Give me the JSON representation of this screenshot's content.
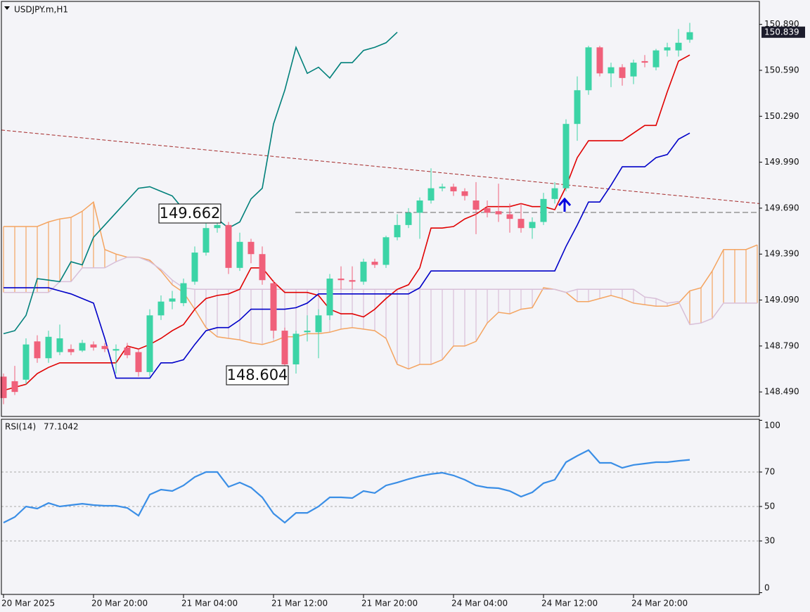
{
  "chart_data": [
    {
      "type": "candlestick",
      "title": "USDJPY.m,H1",
      "categories": [
        "20 Mar 2025",
        null,
        null,
        null,
        null,
        null,
        null,
        null,
        "20 Mar 20:00",
        null,
        null,
        null,
        null,
        null,
        null,
        null,
        "21 Mar 04:00",
        null,
        null,
        null,
        null,
        null,
        null,
        null,
        "21 Mar 12:00",
        null,
        null,
        null,
        null,
        null,
        null,
        null,
        "21 Mar 20:00",
        null,
        null,
        null,
        null,
        null,
        null,
        null,
        "24 Mar 04:00",
        null,
        null,
        null,
        null,
        null,
        null,
        null,
        "24 Mar 12:00",
        null,
        null,
        null,
        null,
        null,
        null,
        null,
        "24 Mar 20:00",
        null,
        null,
        null,
        null,
        null,
        null,
        null,
        null,
        null,
        null,
        null
      ],
      "open": [
        148.59,
        148.56,
        148.57,
        148.82,
        148.71,
        148.75,
        148.77,
        148.76,
        148.8,
        148.79,
        148.76,
        148.78,
        148.75,
        148.62,
        148.99,
        149.08,
        149.07,
        149.21,
        149.4,
        149.56,
        149.58,
        149.3,
        149.47,
        149.39,
        149.2,
        148.89,
        148.67,
        148.88,
        148.88,
        148.99,
        149.23,
        149.22,
        149.21,
        149.34,
        149.32,
        149.5,
        149.58,
        149.66,
        149.74,
        149.82,
        149.83,
        149.8,
        149.74,
        149.69,
        149.67,
        149.65,
        149.62,
        149.56,
        149.6,
        149.75,
        149.82,
        150.24,
        150.46,
        150.74,
        150.57,
        150.61,
        150.55,
        150.65,
        150.61,
        150.72,
        150.72,
        150.79,
        null,
        null,
        null,
        null,
        null,
        null
      ],
      "high": [
        148.61,
        148.66,
        148.84,
        148.86,
        148.89,
        148.93,
        148.8,
        148.83,
        148.82,
        148.81,
        148.8,
        148.81,
        148.77,
        149.03,
        149.12,
        149.15,
        149.23,
        149.44,
        149.59,
        149.662,
        149.6,
        149.53,
        149.49,
        149.44,
        149.22,
        148.91,
        148.89,
        148.99,
        149.03,
        149.26,
        149.31,
        149.31,
        149.36,
        149.36,
        149.51,
        149.65,
        149.69,
        149.76,
        149.95,
        149.85,
        149.85,
        149.82,
        149.86,
        149.74,
        149.85,
        149.72,
        149.72,
        149.63,
        149.79,
        149.86,
        150.27,
        150.55,
        150.75,
        150.75,
        150.64,
        150.63,
        150.66,
        150.69,
        150.73,
        150.77,
        150.86,
        150.9,
        null,
        null,
        null,
        null,
        null,
        null
      ],
      "low": [
        148.41,
        148.47,
        148.54,
        148.68,
        148.68,
        148.73,
        148.73,
        148.75,
        148.76,
        148.75,
        148.61,
        148.71,
        148.59,
        148.59,
        148.96,
        149.03,
        149.05,
        149.19,
        149.38,
        149.53,
        149.26,
        149.28,
        149.33,
        149.19,
        148.84,
        148.604,
        148.61,
        148.82,
        148.71,
        148.96,
        149.16,
        149.16,
        149.19,
        149.3,
        149.3,
        149.48,
        149.56,
        149.49,
        149.72,
        149.8,
        149.77,
        149.74,
        149.52,
        149.63,
        149.6,
        149.53,
        149.53,
        149.49,
        149.58,
        149.72,
        149.8,
        150.13,
        150.43,
        150.55,
        150.48,
        150.49,
        150.5,
        150.61,
        150.59,
        150.68,
        150.68,
        150.77,
        null,
        null,
        null,
        null,
        null,
        null
      ],
      "close": [
        148.45,
        148.49,
        148.8,
        148.71,
        148.85,
        148.84,
        148.75,
        148.81,
        148.78,
        148.77,
        148.77,
        148.73,
        148.62,
        148.99,
        149.08,
        149.1,
        149.2,
        149.4,
        149.56,
        149.58,
        149.3,
        149.47,
        149.39,
        149.22,
        148.89,
        148.67,
        148.87,
        148.89,
        148.99,
        149.23,
        149.22,
        149.21,
        149.34,
        149.32,
        149.5,
        149.58,
        149.66,
        149.74,
        149.82,
        149.83,
        149.8,
        149.77,
        149.68,
        149.66,
        149.65,
        149.62,
        149.56,
        149.6,
        149.75,
        149.82,
        150.24,
        150.46,
        150.74,
        150.57,
        150.61,
        150.54,
        150.64,
        150.64,
        150.72,
        150.74,
        150.77,
        150.839,
        null,
        null,
        null,
        null,
        null,
        null
      ],
      "up_color": "#3cd4a6",
      "down_color": "#f0607a",
      "lines": [
        {
          "color": "#e00000",
          "values": [
            148.5,
            148.52,
            148.54,
            148.61,
            148.65,
            148.68,
            148.68,
            148.68,
            148.68,
            148.68,
            148.68,
            148.79,
            148.77,
            148.8,
            148.84,
            148.89,
            148.93,
            149.03,
            149.1,
            149.12,
            149.13,
            149.16,
            149.3,
            149.3,
            149.21,
            149.14,
            149.14,
            149.14,
            149.12,
            149.03,
            149.0,
            149.0,
            148.98,
            149.03,
            149.1,
            149.16,
            149.19,
            149.3,
            149.56,
            149.56,
            149.57,
            149.62,
            149.65,
            149.7,
            149.7,
            149.7,
            149.72,
            149.7,
            149.7,
            149.68,
            149.83,
            150.02,
            150.13,
            150.13,
            150.13,
            150.13,
            150.18,
            150.23,
            150.23,
            150.45,
            150.65,
            150.69,
            null,
            null,
            null,
            null,
            null,
            null
          ]
        },
        {
          "color": "#0000c8",
          "values": [
            149.17,
            149.17,
            149.17,
            149.17,
            149.17,
            149.15,
            149.13,
            149.1,
            149.07,
            148.84,
            148.58,
            148.58,
            148.58,
            148.58,
            148.68,
            148.68,
            148.7,
            148.8,
            148.89,
            148.91,
            148.91,
            148.96,
            149.03,
            149.03,
            149.03,
            149.03,
            149.04,
            149.07,
            149.13,
            149.13,
            149.13,
            149.13,
            149.13,
            149.13,
            149.13,
            149.13,
            149.13,
            149.17,
            149.28,
            149.28,
            149.28,
            149.28,
            149.28,
            149.28,
            149.28,
            149.28,
            149.28,
            149.28,
            149.28,
            149.28,
            149.44,
            149.58,
            149.73,
            149.73,
            149.84,
            149.96,
            149.96,
            149.96,
            150.02,
            150.04,
            150.14,
            150.18,
            null,
            null,
            null,
            null,
            null,
            null
          ]
        },
        {
          "color": "#00807a",
          "values": [
            148.87,
            148.89,
            148.99,
            149.23,
            149.22,
            149.21,
            149.34,
            149.32,
            149.5,
            149.58,
            149.66,
            149.74,
            149.82,
            149.83,
            149.8,
            149.77,
            149.68,
            149.66,
            149.65,
            149.62,
            149.56,
            149.6,
            149.75,
            149.82,
            150.24,
            150.46,
            150.74,
            150.57,
            150.61,
            150.54,
            150.64,
            150.64,
            150.72,
            150.74,
            150.77,
            150.839,
            null,
            null,
            null,
            null,
            null,
            null,
            null,
            null,
            null,
            null,
            null,
            null,
            null,
            null,
            null,
            null,
            null,
            null,
            null,
            null,
            null,
            null,
            null,
            null,
            null,
            null,
            null,
            null,
            null,
            null,
            null,
            null
          ]
        }
      ],
      "cloud": {
        "up_color": "#f4a460",
        "down_color": "#d8bfd8",
        "a": [
          149.57,
          149.57,
          149.57,
          149.57,
          149.6,
          149.62,
          149.63,
          149.67,
          149.73,
          149.42,
          149.39,
          149.37,
          149.37,
          149.35,
          149.28,
          149.19,
          149.14,
          149.03,
          148.91,
          148.85,
          148.84,
          148.83,
          148.81,
          148.8,
          148.82,
          148.85,
          148.85,
          148.87,
          148.87,
          148.88,
          148.9,
          148.91,
          148.9,
          148.89,
          148.84,
          148.67,
          148.64,
          148.67,
          148.67,
          148.7,
          148.79,
          148.79,
          148.82,
          148.94,
          149.01,
          149.0,
          149.03,
          149.04,
          149.17,
          149.16,
          149.14,
          149.08,
          149.08,
          149.1,
          149.12,
          149.1,
          149.07,
          149.06,
          149.05,
          149.05,
          149.07,
          149.15,
          149.17,
          149.28,
          149.42,
          149.42,
          149.42,
          149.45
        ],
        "b": [
          149.14,
          149.14,
          149.14,
          149.14,
          149.14,
          149.21,
          149.21,
          149.3,
          149.3,
          149.3,
          149.34,
          149.37,
          149.37,
          149.34,
          149.29,
          149.22,
          149.17,
          149.16,
          149.16,
          149.16,
          149.16,
          149.16,
          149.16,
          149.16,
          149.16,
          149.16,
          149.16,
          149.16,
          149.16,
          149.16,
          149.16,
          149.16,
          149.16,
          149.16,
          149.16,
          149.16,
          149.16,
          149.16,
          149.16,
          149.16,
          149.16,
          149.16,
          149.16,
          149.16,
          149.16,
          149.16,
          149.16,
          149.16,
          149.16,
          149.16,
          149.14,
          149.16,
          149.16,
          149.16,
          149.16,
          149.16,
          149.16,
          149.11,
          149.1,
          149.07,
          149.08,
          148.93,
          148.94,
          148.97,
          149.07,
          149.07,
          149.07,
          149.07
        ]
      },
      "trendline": {
        "color": "#a52a2a",
        "values": [
          150.2,
          149.72
        ]
      },
      "ylim": [
        148.33,
        151.04
      ],
      "yticks": [
        {
          "value": 150.89,
          "label": "150.890"
        },
        {
          "value": 150.59,
          "label": "150.590"
        },
        {
          "value": 150.29,
          "label": "150.290"
        },
        {
          "value": 149.99,
          "label": "149.990"
        },
        {
          "value": 149.69,
          "label": "149.690"
        },
        {
          "value": 149.39,
          "label": "149.390"
        },
        {
          "value": 149.09,
          "label": "149.090"
        },
        {
          "value": 148.79,
          "label": "148.790"
        },
        {
          "value": 148.49,
          "label": "148.490"
        }
      ]
    },
    {
      "type": "line",
      "title": "RSI(14)",
      "color": "#3a8ee6",
      "values": [
        40.6,
        43.9,
        50.0,
        48.8,
        52.0,
        50.0,
        50.8,
        51.6,
        50.8,
        50.4,
        50.4,
        49.2,
        44.7,
        56.9,
        59.8,
        59.0,
        62.2,
        67.1,
        70.0,
        70.0,
        61.4,
        63.9,
        61.0,
        55.3,
        45.9,
        40.6,
        46.3,
        46.3,
        50.0,
        55.3,
        55.3,
        54.9,
        59.0,
        57.8,
        62.2,
        63.9,
        65.9,
        67.6,
        68.8,
        69.6,
        68.0,
        65.5,
        62.2,
        61.0,
        60.6,
        59.0,
        55.7,
        58.2,
        63.5,
        65.5,
        75.7,
        79.4,
        82.7,
        75.3,
        75.3,
        72.4,
        74.1,
        74.9,
        75.7,
        75.7,
        76.5,
        77.1042
      ],
      "ylim": [
        -1,
        100.6
      ],
      "yticks": [
        0,
        30,
        50,
        70,
        100
      ],
      "levels": [
        30,
        50,
        70
      ]
    }
  ]
}
